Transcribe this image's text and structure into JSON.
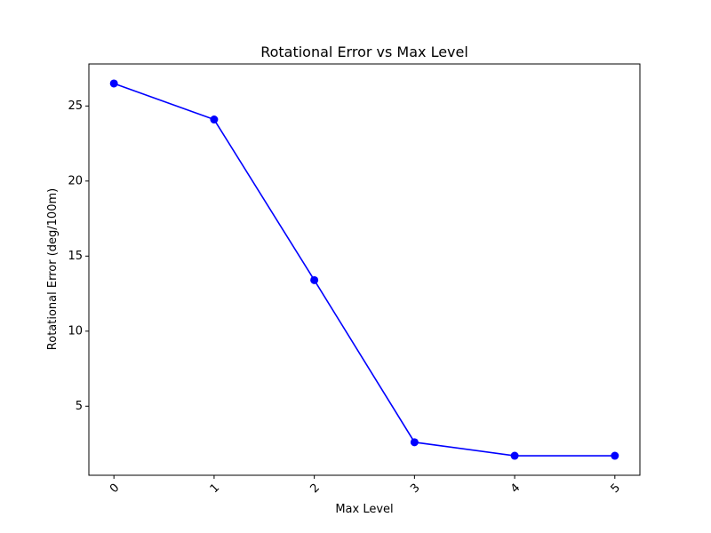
{
  "chart_data": {
    "type": "line",
    "title": "Rotational Error vs Max Level",
    "xlabel": "Max Level",
    "ylabel": "Rotational Error (deg/100m)",
    "x": [
      0,
      1,
      2,
      3,
      4,
      5
    ],
    "x_tick_labels": [
      "0",
      "1",
      "2",
      "3",
      "4",
      "5"
    ],
    "y_ticks": [
      5,
      10,
      15,
      20,
      25
    ],
    "y_tick_labels": [
      "5",
      "10",
      "15",
      "20",
      "25"
    ],
    "xlim": [
      -0.25,
      5.25
    ],
    "ylim": [
      0.4,
      27.8
    ],
    "grid": false,
    "series": [
      {
        "values": [
          26.5,
          24.1,
          13.4,
          2.6,
          1.7,
          1.7
        ],
        "color": "#0000ff",
        "marker": "circle"
      }
    ]
  }
}
